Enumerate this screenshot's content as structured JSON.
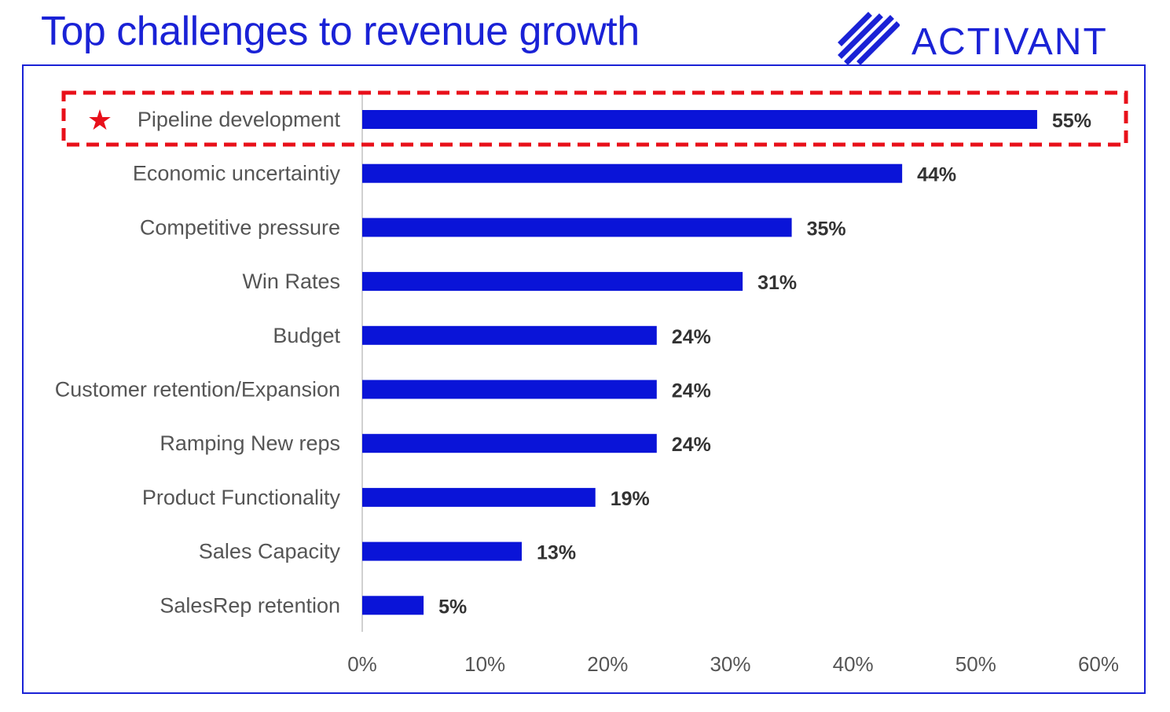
{
  "header": {
    "title": "Top challenges to revenue growth",
    "logo_text": "ACTIVANT"
  },
  "colors": {
    "bar": "#0a14d8",
    "highlight": "#e8101a",
    "brand": "#1a22d6"
  },
  "chart_data": {
    "type": "bar",
    "orientation": "horizontal",
    "title": "Top challenges to revenue growth",
    "categories": [
      "Pipeline development",
      "Economic uncertaintiy",
      "Competitive pressure",
      "Win Rates",
      "Budget",
      "Customer retention/Expansion",
      "Ramping New reps",
      "Product Functionality",
      "Sales Capacity",
      "SalesRep retention"
    ],
    "values": [
      55,
      44,
      35,
      31,
      24,
      24,
      24,
      19,
      13,
      5
    ],
    "value_labels": [
      "55%",
      "44%",
      "35%",
      "31%",
      "24%",
      "24%",
      "24%",
      "19%",
      "13%",
      "5%"
    ],
    "xlim": [
      0,
      60
    ],
    "x_ticks": [
      "0%",
      "10%",
      "20%",
      "30%",
      "40%",
      "50%",
      "60%"
    ],
    "grid": false,
    "highlighted_category": "Pipeline development",
    "highlight_marker": "★"
  }
}
